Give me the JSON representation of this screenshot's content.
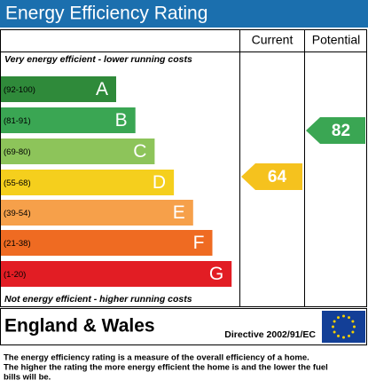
{
  "title": "Energy Efficiency Rating",
  "columns": {
    "current": "Current",
    "potential": "Potential"
  },
  "top_note": "Very energy efficient - lower running costs",
  "bottom_note": "Not energy efficient - higher running costs",
  "bands": [
    {
      "range": "(92-100)",
      "letter": "A",
      "color": "#2f8a3a"
    },
    {
      "range": "(81-91)",
      "letter": "B",
      "color": "#3aa653"
    },
    {
      "range": "(69-80)",
      "letter": "C",
      "color": "#8dc45a"
    },
    {
      "range": "(55-68)",
      "letter": "D",
      "color": "#f5cf1d"
    },
    {
      "range": "(39-54)",
      "letter": "E",
      "color": "#f6a04a"
    },
    {
      "range": "(21-38)",
      "letter": "F",
      "color": "#ef6b22"
    },
    {
      "range": "(1-20)",
      "letter": "G",
      "color": "#e21d24"
    }
  ],
  "current": {
    "value": 64,
    "color": "#f5c21e"
  },
  "potential": {
    "value": 82,
    "color": "#3aa653"
  },
  "footer": {
    "region": "England & Wales",
    "directive": "Directive 2002/91/EC"
  },
  "description": [
    "The energy efficiency rating is a measure of the overall efficiency of a home.",
    "The higher the rating the more energy efficient the home is and the lower the fuel",
    "bills will be."
  ]
}
